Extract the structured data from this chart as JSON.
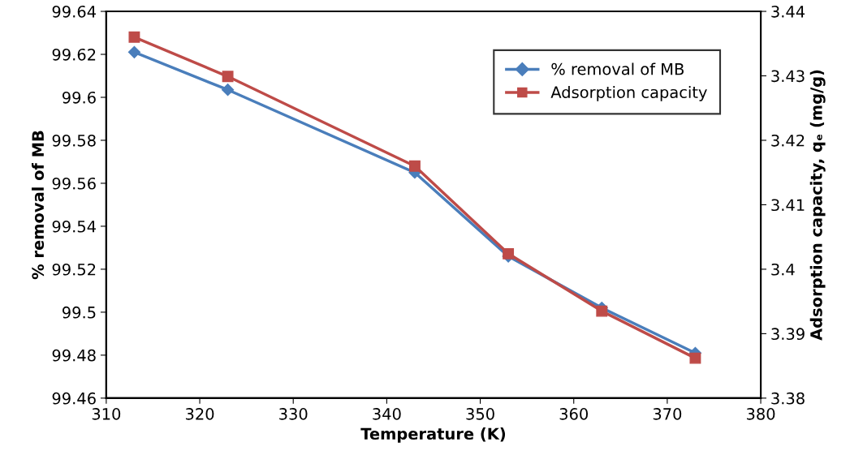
{
  "chart_data": {
    "type": "line",
    "xlabel": "Temperature (K)",
    "ylabel": "% removal of MB",
    "y2label": "Adsorption capacity, qₑ (mg/g)",
    "x": [
      313,
      323,
      343,
      353,
      363,
      373
    ],
    "series": [
      {
        "name": "% removal of MB",
        "color": "#4a7ebb",
        "marker": "diamond",
        "values": [
          99.621,
          99.6035,
          99.565,
          99.526,
          99.502,
          99.481
        ]
      },
      {
        "name": "Adsorption capacity",
        "color": "#be4b48",
        "marker": "square",
        "axis": "y2",
        "values": [
          3.436,
          3.4299,
          3.416,
          3.4024,
          3.3935,
          3.3862
        ]
      }
    ],
    "xlim": [
      310,
      380
    ],
    "xticks": [
      310,
      320,
      330,
      340,
      350,
      360,
      370,
      380
    ],
    "ylim": [
      99.46,
      99.64
    ],
    "yticks": [
      {
        "value": 99.46,
        "label": "99.46"
      },
      {
        "value": 99.48,
        "label": "99.48"
      },
      {
        "value": 99.5,
        "label": "99.5"
      },
      {
        "value": 99.52,
        "label": "99.52"
      },
      {
        "value": 99.54,
        "label": "99.54"
      },
      {
        "value": 99.56,
        "label": "99.56"
      },
      {
        "value": 99.58,
        "label": "99.58"
      },
      {
        "value": 99.6,
        "label": "99.6"
      },
      {
        "value": 99.62,
        "label": "99.62"
      },
      {
        "value": 99.64,
        "label": "99.64"
      }
    ],
    "y2lim": [
      3.38,
      3.44
    ],
    "y2ticks": [
      {
        "value": 3.38,
        "label": "3.38"
      },
      {
        "value": 3.39,
        "label": "3.39"
      },
      {
        "value": 3.4,
        "label": "3.4"
      },
      {
        "value": 3.41,
        "label": "3.41"
      },
      {
        "value": 3.42,
        "label": "3.42"
      },
      {
        "value": 3.43,
        "label": "3.43"
      },
      {
        "value": 3.44,
        "label": "3.44"
      }
    ],
    "grid": false,
    "legend": "top right",
    "line_style": "solid"
  }
}
